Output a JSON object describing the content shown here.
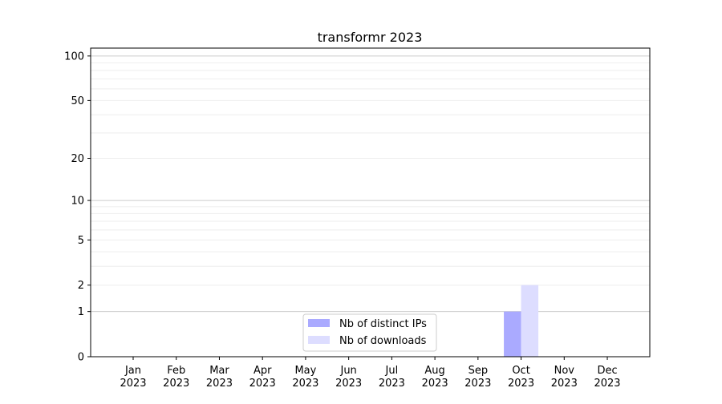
{
  "chart_data": {
    "type": "bar",
    "title": "transformr 2023",
    "xlabel": "",
    "ylabel": "",
    "yscale": "log(1+y)",
    "ylim": [
      0,
      113
    ],
    "yticks": [
      0,
      1,
      2,
      5,
      10,
      20,
      50,
      100
    ],
    "ytick_labels": [
      "0",
      "1",
      "2",
      "5",
      "10",
      "20",
      "50",
      "100"
    ],
    "grid": true,
    "legend_position": "bottom-center",
    "categories": [
      "Jan\n2023",
      "Feb\n2023",
      "Mar\n2023",
      "Apr\n2023",
      "May\n2023",
      "Jun\n2023",
      "Jul\n2023",
      "Aug\n2023",
      "Sep\n2023",
      "Oct\n2023",
      "Nov\n2023",
      "Dec\n2023"
    ],
    "series": [
      {
        "name": "Nb of distinct IPs",
        "color": "#aaaaff",
        "values": [
          0,
          0,
          0,
          0,
          0,
          0,
          0,
          0,
          0,
          1,
          0,
          0
        ]
      },
      {
        "name": "Nb of downloads",
        "color": "#ddddff",
        "values": [
          0,
          0,
          0,
          0,
          0,
          0,
          0,
          0,
          0,
          2,
          0,
          0
        ]
      }
    ]
  }
}
